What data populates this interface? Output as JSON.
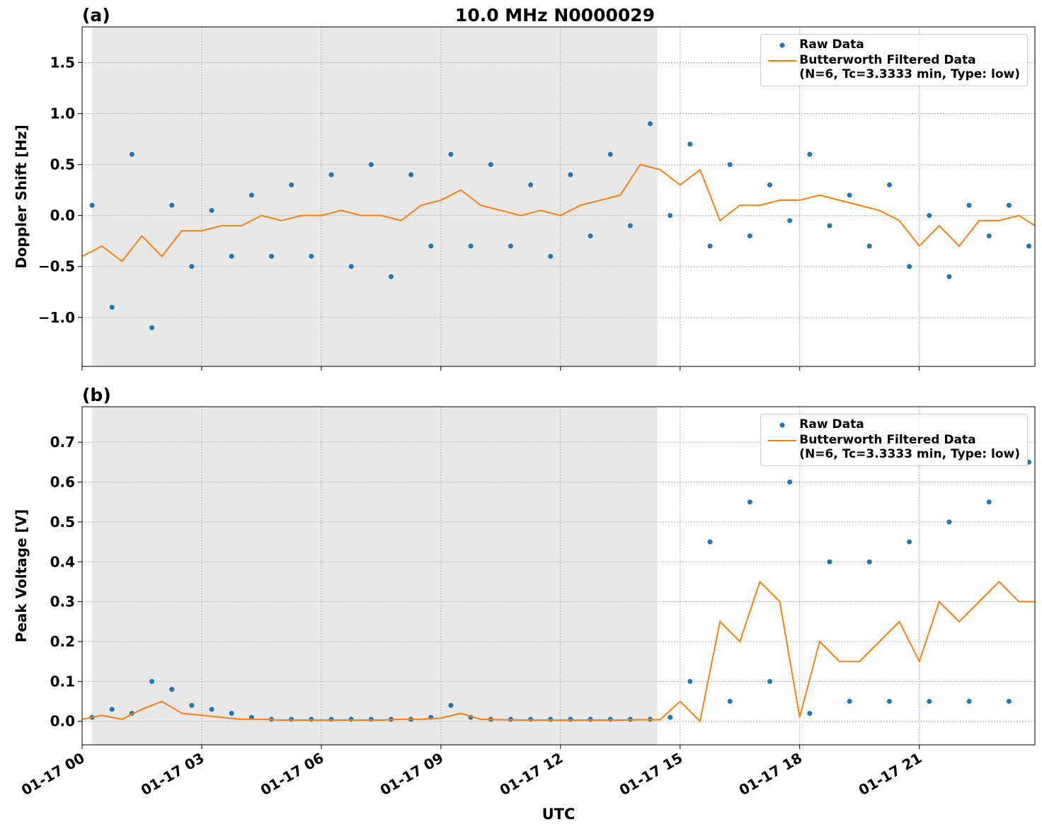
{
  "chart_data": [
    {
      "type": "line",
      "title": "10.0 MHz N0000029",
      "panel_label": "(a)",
      "y_label": "Doppler Shift [Hz]",
      "xlim": [
        0,
        23.9
      ],
      "xticks": [
        0,
        3,
        6,
        9,
        12,
        15,
        18,
        21
      ],
      "ylim": [
        -1.48,
        1.85
      ],
      "yticks": [
        {
          "value": -1,
          "label": "−1.0"
        },
        {
          "value": -0.5,
          "label": "−0.5"
        },
        {
          "value": 0,
          "label": "0.0"
        },
        0.5,
        {
          "value": 1,
          "label": "1.0"
        },
        1.5
      ],
      "grid": true,
      "legend": "upper right",
      "shaded_region": [
        0.25,
        14.43
      ],
      "series": [
        {
          "name": "Raw Data",
          "type": "scatter",
          "color": "#1f77b4",
          "x": [
            0.25,
            0.75,
            1.25,
            1.75,
            2.25,
            2.75,
            3.25,
            3.75,
            4.25,
            4.75,
            5.25,
            5.75,
            6.25,
            6.75,
            7.25,
            7.75,
            8.25,
            8.75,
            9.25,
            9.75,
            10.25,
            10.75,
            11.25,
            11.75,
            12.25,
            12.75,
            13.25,
            13.75,
            14.25,
            14.75,
            15.25,
            15.75,
            16.25,
            16.75,
            17.25,
            17.75,
            18.25,
            18.75,
            19.25,
            19.75,
            20.25,
            20.75,
            21.25,
            21.75,
            22.25,
            22.75,
            23.25,
            23.75
          ],
          "values": [
            0.1,
            -0.9,
            0.6,
            -1.1,
            0.1,
            -0.5,
            0.05,
            -0.4,
            0.2,
            -0.4,
            0.3,
            -0.4,
            0.4,
            -0.5,
            0.5,
            -0.6,
            0.4,
            -0.3,
            0.6,
            -0.3,
            0.5,
            -0.3,
            0.3,
            -0.4,
            0.4,
            -0.2,
            0.6,
            -0.1,
            0.9,
            0.0,
            0.7,
            -0.3,
            0.5,
            -0.2,
            0.3,
            -0.05,
            0.6,
            -0.1,
            0.2,
            -0.3,
            0.3,
            -0.5,
            0.0,
            -0.6,
            0.1,
            -0.2,
            0.1,
            -0.3
          ]
        },
        {
          "name": "Butterworth Filtered Data\n(N=6, Tc=3.3333 min, Type: low)",
          "type": "line",
          "color": "#ff7f0e",
          "x": [
            0,
            0.5,
            1,
            1.5,
            2,
            2.5,
            3,
            3.5,
            4,
            4.5,
            5,
            5.5,
            6,
            6.5,
            7,
            7.5,
            8,
            8.5,
            9,
            9.5,
            10,
            10.5,
            11,
            11.5,
            12,
            12.5,
            13,
            13.5,
            14,
            14.5,
            15,
            15.5,
            16,
            16.5,
            17,
            17.5,
            18,
            18.5,
            19,
            19.5,
            20,
            20.5,
            21,
            21.5,
            22,
            22.5,
            23,
            23.5,
            23.9
          ],
          "values": [
            -0.4,
            -0.3,
            -0.45,
            -0.2,
            -0.4,
            -0.15,
            -0.15,
            -0.1,
            -0.1,
            0.0,
            -0.05,
            0.0,
            0.0,
            0.05,
            0.0,
            0.0,
            -0.05,
            0.1,
            0.15,
            0.25,
            0.1,
            0.05,
            0.0,
            0.05,
            0.0,
            0.1,
            0.15,
            0.2,
            0.5,
            0.45,
            0.3,
            0.45,
            -0.05,
            0.1,
            0.1,
            0.15,
            0.15,
            0.2,
            0.15,
            0.1,
            0.05,
            -0.05,
            -0.3,
            -0.1,
            -0.3,
            -0.05,
            -0.05,
            0.0,
            -0.1
          ]
        }
      ]
    },
    {
      "type": "line",
      "panel_label": "(b)",
      "y_label": "Peak Voltage [V]",
      "x_label": "UTC",
      "xlim": [
        0,
        23.9
      ],
      "xticks": [
        {
          "value": 0,
          "label": "01-17 00"
        },
        {
          "value": 3,
          "label": "01-17 03"
        },
        {
          "value": 6,
          "label": "01-17 06"
        },
        {
          "value": 9,
          "label": "01-17 09"
        },
        {
          "value": 12,
          "label": "01-17 12"
        },
        {
          "value": 15,
          "label": "01-17 15"
        },
        {
          "value": 18,
          "label": "01-17 18"
        },
        {
          "value": 21,
          "label": "01-17 21"
        }
      ],
      "ylim": [
        -0.059,
        0.789
      ],
      "yticks": [
        {
          "value": 0,
          "label": "0.0"
        },
        0.1,
        0.2,
        0.3,
        0.4,
        0.5,
        0.6,
        0.7
      ],
      "grid": true,
      "legend": "upper right",
      "shaded_region": [
        0.25,
        14.43
      ],
      "series": [
        {
          "name": "Raw Data",
          "type": "scatter",
          "color": "#1f77b4",
          "x": [
            0.25,
            0.75,
            1.25,
            1.75,
            2.25,
            2.75,
            3.25,
            3.75,
            4.25,
            4.75,
            5.25,
            5.75,
            6.25,
            6.75,
            7.25,
            7.75,
            8.25,
            8.75,
            9.25,
            9.75,
            10.25,
            10.75,
            11.25,
            11.75,
            12.25,
            12.75,
            13.25,
            13.75,
            14.25,
            14.75,
            15.25,
            15.75,
            16.25,
            16.75,
            17.25,
            17.75,
            18.25,
            18.75,
            19.25,
            19.75,
            20.25,
            20.75,
            21.25,
            21.75,
            22.25,
            22.75,
            23.25,
            23.75
          ],
          "values": [
            0.01,
            0.03,
            0.02,
            0.1,
            0.08,
            0.04,
            0.03,
            0.02,
            0.01,
            0.005,
            0.005,
            0.005,
            0.005,
            0.005,
            0.005,
            0.005,
            0.005,
            0.01,
            0.04,
            0.01,
            0.005,
            0.005,
            0.005,
            0.005,
            0.005,
            0.005,
            0.005,
            0.005,
            0.005,
            0.01,
            0.1,
            0.45,
            0.05,
            0.55,
            0.1,
            0.6,
            0.02,
            0.4,
            0.05,
            0.4,
            0.05,
            0.45,
            0.05,
            0.5,
            0.05,
            0.55,
            0.05,
            0.65
          ]
        },
        {
          "name": "Butterworth Filtered Data\n(N=6, Tc=3.3333 min, Type: low)",
          "type": "line",
          "color": "#ff7f0e",
          "x": [
            0,
            0.5,
            1,
            1.5,
            2,
            2.5,
            3,
            3.5,
            4,
            4.5,
            5,
            5.5,
            6,
            6.5,
            7,
            7.5,
            8,
            8.5,
            9,
            9.5,
            10,
            10.5,
            11,
            11.5,
            12,
            12.5,
            13,
            13.5,
            14,
            14.5,
            15,
            15.5,
            16,
            16.5,
            17,
            17.5,
            18,
            18.5,
            19,
            19.5,
            20,
            20.5,
            21,
            21.5,
            22,
            22.5,
            23,
            23.5,
            23.9
          ],
          "values": [
            0.005,
            0.015,
            0.005,
            0.03,
            0.05,
            0.02,
            0.015,
            0.01,
            0.005,
            0.005,
            0.003,
            0.003,
            0.003,
            0.003,
            0.003,
            0.003,
            0.005,
            0.005,
            0.008,
            0.02,
            0.005,
            0.004,
            0.003,
            0.003,
            0.003,
            0.003,
            0.003,
            0.003,
            0.004,
            0.004,
            0.05,
            0.0,
            0.25,
            0.2,
            0.35,
            0.3,
            0.01,
            0.2,
            0.15,
            0.15,
            0.2,
            0.25,
            0.15,
            0.3,
            0.25,
            0.3,
            0.35,
            0.3,
            0.3
          ]
        }
      ]
    }
  ]
}
